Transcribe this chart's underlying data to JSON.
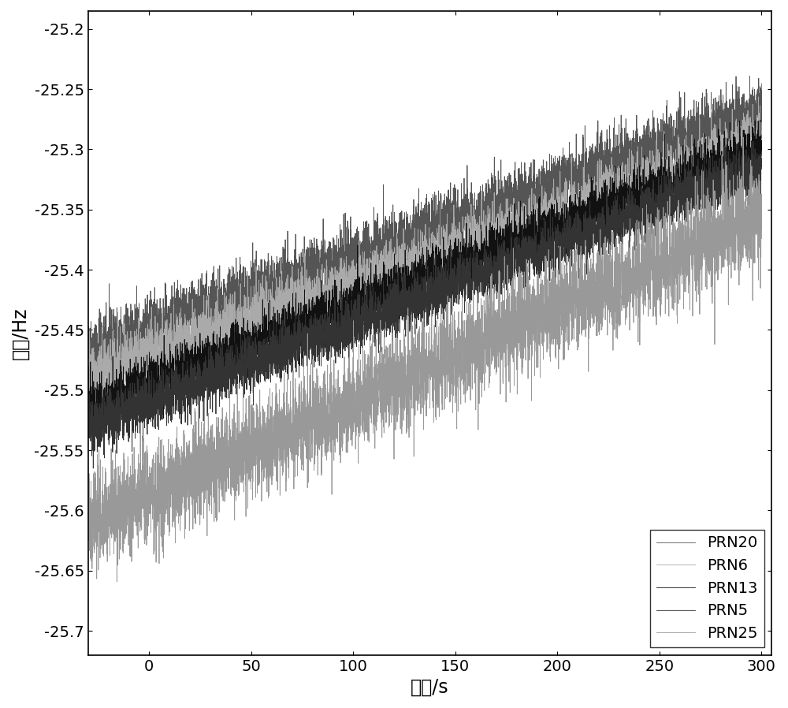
{
  "x_start": -30,
  "x_end": 300,
  "xlim": [
    -30,
    305
  ],
  "ylim": [
    -25.72,
    -25.185
  ],
  "yticks": [
    -25.7,
    -25.65,
    -25.6,
    -25.55,
    -25.5,
    -25.45,
    -25.4,
    -25.35,
    -25.3,
    -25.25,
    -25.2
  ],
  "xticks": [
    0,
    50,
    100,
    150,
    200,
    250,
    300
  ],
  "xlabel": "时间/s",
  "ylabel": "频率/Hz",
  "series": [
    {
      "label": "PRN20",
      "color": "#555555",
      "base_start": -25.468,
      "base_end": -25.268,
      "noise": 0.013,
      "linewidth": 0.6
    },
    {
      "label": "PRN6",
      "color": "#aaaaaa",
      "base_start": -25.49,
      "base_end": -25.295,
      "noise": 0.013,
      "linewidth": 0.6
    },
    {
      "label": "PRN13",
      "color": "#111111",
      "base_start": -25.515,
      "base_end": -25.3,
      "noise": 0.011,
      "linewidth": 0.6
    },
    {
      "label": "PRN5",
      "color": "#333333",
      "base_start": -25.53,
      "base_end": -25.315,
      "noise": 0.011,
      "linewidth": 0.6
    },
    {
      "label": "PRN25",
      "color": "#999999",
      "base_start": -25.61,
      "base_end": -25.355,
      "noise": 0.02,
      "linewidth": 0.6
    }
  ],
  "legend_loc": "lower right",
  "background_color": "#ffffff",
  "n_points": 6600,
  "seed": 42,
  "tick_fontsize": 14,
  "label_fontsize": 17,
  "legend_fontsize": 14
}
